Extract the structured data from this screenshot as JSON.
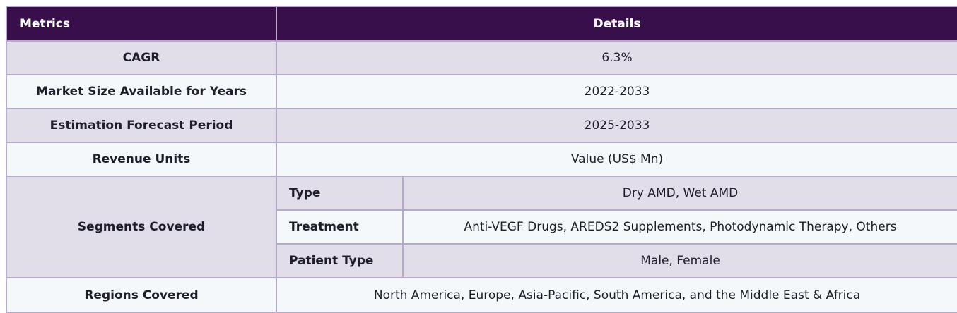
{
  "header": {
    "metrics": "Metrics",
    "details": "Details"
  },
  "rows": [
    {
      "metric": "CAGR",
      "value": "6.3%"
    },
    {
      "metric": "Market Size Available for Years",
      "value": "2022-2033"
    },
    {
      "metric": "Estimation Forecast Period",
      "value": "2025-2033"
    },
    {
      "metric": "Revenue Units",
      "value": "Value (US$ Mn)"
    }
  ],
  "segments": {
    "metric": "Segments Covered",
    "items": [
      {
        "label": "Type",
        "value": "Dry AMD, Wet AMD"
      },
      {
        "label": "Treatment",
        "value": "Anti-VEGF Drugs, AREDS2 Supplements, Photodynamic Therapy, Others"
      },
      {
        "label": "Patient Type",
        "value": "Male, Female"
      }
    ]
  },
  "regions": {
    "metric": "Regions Covered",
    "value": "North America, Europe, Asia-Pacific, South America, and the Middle East & Africa"
  },
  "colors": {
    "header_bg": "#380f4b",
    "row_shade": "#e2dee9",
    "row_light": "#f4f8fb",
    "border": "#b6aacb"
  }
}
